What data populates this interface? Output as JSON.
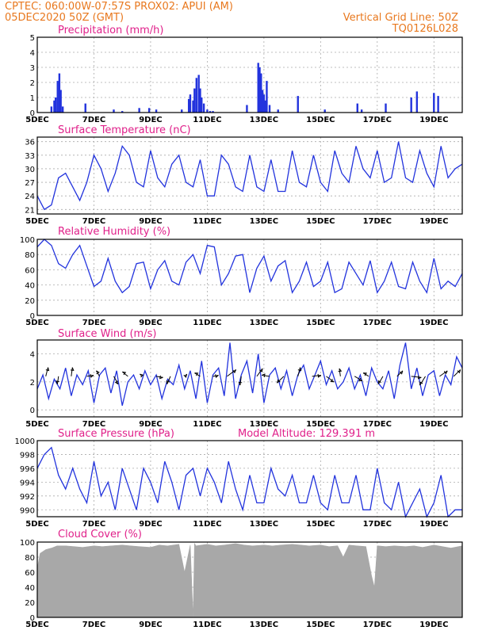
{
  "header": {
    "line1_left": "CPTEC:   060:00W-07:57S   PROX02: APUI (AM)",
    "line2_left": "05DEC2020 50Z (GMT)",
    "line1_right": "Vertical Grid Line: 50Z",
    "line2_right": "TQ0126L028"
  },
  "colors": {
    "header": "#e8781e",
    "title": "#e0208a",
    "series": "#2233dd",
    "cloud": "#a8a8a8"
  },
  "x_ticks": [
    "5DEC",
    "7DEC",
    "9DEC",
    "11DEC",
    "13DEC",
    "15DEC",
    "17DEC",
    "19DEC"
  ],
  "chart_data": [
    {
      "id": "precip",
      "type": "bar",
      "title": "Precipitation (mm/h)",
      "ylim": [
        0,
        5
      ],
      "yticks": [
        "0",
        "1",
        "2",
        "3",
        "4",
        "5"
      ],
      "xlim_days": [
        5,
        20
      ],
      "x": [
        5.5,
        5.6,
        5.65,
        5.72,
        5.78,
        5.83,
        5.9,
        6.7,
        7.7,
        8.0,
        8.6,
        8.95,
        9.2,
        10.1,
        10.35,
        10.4,
        10.5,
        10.55,
        10.62,
        10.7,
        10.75,
        10.8,
        10.88,
        11.0,
        11.1,
        11.2,
        12.4,
        12.8,
        12.85,
        12.9,
        12.95,
        13.0,
        13.05,
        13.1,
        13.2,
        13.5,
        14.2,
        15.15,
        16.3,
        16.45,
        17.3,
        18.2,
        18.4,
        19.0,
        19.15
      ],
      "values": [
        0.4,
        0.8,
        1.0,
        2.1,
        2.6,
        1.5,
        0.4,
        0.6,
        0.2,
        0.1,
        0.3,
        0.3,
        0.2,
        0.2,
        0.9,
        1.2,
        0.8,
        1.6,
        2.3,
        2.5,
        1.6,
        1.0,
        0.6,
        0.2,
        0.1,
        0.1,
        0.5,
        3.3,
        3.0,
        2.6,
        1.5,
        1.2,
        0.8,
        2.1,
        0.5,
        0.2,
        1.1,
        0.2,
        0.6,
        0.2,
        0.6,
        1.0,
        1.4,
        1.3,
        1.1
      ],
      "grid": true
    },
    {
      "id": "temp",
      "type": "line",
      "title": "Surface Temperature (nC)",
      "ylim": [
        20,
        37
      ],
      "yticks": [
        "21",
        "24",
        "27",
        "30",
        "33",
        "36"
      ],
      "xlim_days": [
        5,
        20
      ],
      "x": [
        5.0,
        5.25,
        5.5,
        5.75,
        6.0,
        6.25,
        6.5,
        6.75,
        7.0,
        7.25,
        7.5,
        7.75,
        8.0,
        8.25,
        8.5,
        8.75,
        9.0,
        9.25,
        9.5,
        9.75,
        10.0,
        10.25,
        10.5,
        10.75,
        11.0,
        11.25,
        11.5,
        11.75,
        12.0,
        12.25,
        12.5,
        12.75,
        13.0,
        13.25,
        13.5,
        13.75,
        14.0,
        14.25,
        14.5,
        14.75,
        15.0,
        15.25,
        15.5,
        15.75,
        16.0,
        16.25,
        16.5,
        16.75,
        17.0,
        17.25,
        17.5,
        17.75,
        18.0,
        18.25,
        18.5,
        18.75,
        19.0,
        19.25,
        19.5,
        19.75,
        20.0
      ],
      "values": [
        24,
        21,
        22,
        28,
        29,
        26,
        23,
        27,
        33,
        30,
        25,
        29,
        35,
        33,
        27,
        26,
        34,
        28,
        26,
        31,
        33,
        27,
        26,
        32,
        24,
        24,
        33,
        31,
        26,
        25,
        33,
        26,
        25,
        32,
        25,
        25,
        34,
        27,
        26,
        33,
        27,
        25,
        34,
        29,
        27,
        35,
        30,
        28,
        34,
        27,
        28,
        36,
        28,
        27,
        34,
        29,
        26,
        35,
        28,
        30,
        31
      ],
      "grid": true
    },
    {
      "id": "rh",
      "type": "line",
      "title": "Relative Humidity (%)",
      "ylim": [
        0,
        100
      ],
      "yticks": [
        "0",
        "20",
        "40",
        "60",
        "80",
        "100"
      ],
      "xlim_days": [
        5,
        20
      ],
      "x": [
        5.0,
        5.25,
        5.5,
        5.75,
        6.0,
        6.25,
        6.5,
        6.75,
        7.0,
        7.25,
        7.5,
        7.75,
        8.0,
        8.25,
        8.5,
        8.75,
        9.0,
        9.25,
        9.5,
        9.75,
        10.0,
        10.25,
        10.5,
        10.75,
        11.0,
        11.25,
        11.5,
        11.75,
        12.0,
        12.25,
        12.5,
        12.75,
        13.0,
        13.25,
        13.5,
        13.75,
        14.0,
        14.25,
        14.5,
        14.75,
        15.0,
        15.25,
        15.5,
        15.75,
        16.0,
        16.25,
        16.5,
        16.75,
        17.0,
        17.25,
        17.5,
        17.75,
        18.0,
        18.25,
        18.5,
        18.75,
        19.0,
        19.25,
        19.5,
        19.75,
        20.0
      ],
      "values": [
        90,
        100,
        92,
        68,
        62,
        80,
        92,
        65,
        38,
        45,
        75,
        45,
        30,
        38,
        68,
        70,
        35,
        60,
        72,
        45,
        40,
        70,
        80,
        55,
        92,
        90,
        40,
        55,
        78,
        80,
        30,
        62,
        78,
        45,
        65,
        72,
        30,
        45,
        70,
        38,
        45,
        70,
        30,
        35,
        70,
        55,
        40,
        72,
        30,
        45,
        70,
        38,
        35,
        70,
        45,
        30,
        75,
        35,
        45,
        38,
        55
      ],
      "grid": true
    },
    {
      "id": "wind",
      "type": "line",
      "title": "Surface Wind (m/s)",
      "ylim": [
        -0.5,
        5.0
      ],
      "yticks": [
        "0",
        "2",
        "4"
      ],
      "xlim_days": [
        5,
        20
      ],
      "x": [
        5.0,
        5.2,
        5.4,
        5.6,
        5.8,
        6.0,
        6.2,
        6.4,
        6.6,
        6.8,
        7.0,
        7.2,
        7.4,
        7.6,
        7.8,
        8.0,
        8.2,
        8.4,
        8.6,
        8.8,
        9.0,
        9.2,
        9.4,
        9.6,
        9.8,
        10.0,
        10.2,
        10.4,
        10.6,
        10.8,
        11.0,
        11.2,
        11.4,
        11.6,
        11.8,
        12.0,
        12.2,
        12.4,
        12.6,
        12.8,
        13.0,
        13.2,
        13.4,
        13.6,
        13.8,
        14.0,
        14.2,
        14.4,
        14.6,
        14.8,
        15.0,
        15.2,
        15.4,
        15.6,
        15.8,
        16.0,
        16.2,
        16.4,
        16.6,
        16.8,
        17.0,
        17.2,
        17.4,
        17.6,
        17.8,
        18.0,
        18.2,
        18.4,
        18.6,
        18.8,
        19.0,
        19.2,
        19.4,
        19.6,
        19.8,
        20.0
      ],
      "values": [
        1.5,
        2.5,
        0.8,
        2.2,
        1.5,
        3.0,
        1.0,
        2.5,
        1.8,
        2.8,
        0.5,
        2.5,
        3.0,
        1.2,
        2.8,
        0.3,
        2.0,
        2.5,
        1.5,
        2.8,
        1.8,
        2.5,
        0.8,
        2.2,
        1.8,
        3.2,
        1.5,
        2.8,
        0.8,
        3.5,
        0.5,
        2.5,
        3.0,
        1.0,
        4.8,
        0.8,
        2.5,
        3.5,
        1.2,
        4.0,
        0.5,
        2.5,
        3.0,
        1.5,
        2.8,
        1.0,
        2.5,
        3.2,
        1.5,
        2.5,
        3.5,
        1.8,
        2.8,
        1.5,
        2.0,
        3.0,
        1.5,
        2.5,
        1.0,
        3.0,
        2.0,
        1.5,
        2.8,
        0.8,
        3.2,
        4.8,
        1.5,
        3.0,
        1.0,
        2.5,
        2.8,
        1.0,
        2.5,
        1.8,
        3.8,
        3.0
      ],
      "arrows_x": [
        5.3,
        5.75,
        6.2,
        6.75,
        7.2,
        7.7,
        8.2,
        8.7,
        9.2,
        9.7,
        10.2,
        10.75,
        11.2,
        11.7,
        12.2,
        12.75,
        13.2,
        13.7,
        14.2,
        14.7,
        15.2,
        15.7,
        16.2,
        16.7,
        17.2,
        17.7,
        18.2,
        18.7,
        19.2,
        19.7
      ],
      "arrows_u": [
        0.2,
        -0.1,
        0.1,
        0.6,
        -0.3,
        0.4,
        -0.5,
        -0.2,
        0.6,
        -0.3,
        0.2,
        -0.5,
        0.5,
        0.8,
        -0.1,
        0.5,
        -0.7,
        -0.6,
        0.2,
        0.8,
        0.7,
        -0.1,
        0.7,
        -0.5,
        -0.4,
        0.5,
        0.9,
        -0.5,
        0.7,
        0.6
      ],
      "arrows_v": [
        0.8,
        -0.7,
        0.8,
        0.1,
        0.5,
        -0.7,
        0.4,
        0.2,
        -0.1,
        -0.7,
        0.2,
        0.3,
        0.1,
        0.6,
        -0.8,
        0.7,
        0.1,
        -0.6,
        0.8,
        0.1,
        -0.5,
        0.7,
        -0.4,
        0.3,
        -0.7,
        0.5,
        -0.1,
        -0.8,
        0.5,
        0.6
      ],
      "grid": true
    },
    {
      "id": "pres",
      "type": "line",
      "title": "Surface Pressure (hPa)",
      "annotation": "Model Altitude: 129.391 m",
      "ylim": [
        989,
        1000
      ],
      "yticks": [
        "990",
        "992",
        "994",
        "996",
        "998",
        "1000"
      ],
      "xlim_days": [
        5,
        20
      ],
      "x": [
        5.0,
        5.25,
        5.5,
        5.75,
        6.0,
        6.25,
        6.5,
        6.75,
        7.0,
        7.25,
        7.5,
        7.75,
        8.0,
        8.25,
        8.5,
        8.75,
        9.0,
        9.25,
        9.5,
        9.75,
        10.0,
        10.25,
        10.5,
        10.75,
        11.0,
        11.25,
        11.5,
        11.75,
        12.0,
        12.25,
        12.5,
        12.75,
        13.0,
        13.25,
        13.5,
        13.75,
        14.0,
        14.25,
        14.5,
        14.75,
        15.0,
        15.25,
        15.5,
        15.75,
        16.0,
        16.25,
        16.5,
        16.75,
        17.0,
        17.25,
        17.5,
        17.75,
        18.0,
        18.25,
        18.5,
        18.75,
        19.0,
        19.25,
        19.5,
        19.75,
        20.0
      ],
      "values": [
        996,
        998,
        999,
        995,
        993,
        996,
        993,
        991,
        997,
        992,
        994,
        990,
        996,
        993,
        990,
        996,
        994,
        991,
        997,
        994,
        990,
        995,
        996,
        992,
        996,
        994,
        991,
        997,
        993,
        990,
        995,
        991,
        991,
        996,
        993,
        992,
        995,
        991,
        991,
        995,
        991,
        990,
        995,
        991,
        991,
        995,
        990,
        990,
        996,
        991,
        990,
        994,
        989,
        991,
        993,
        989,
        991,
        995,
        989,
        990,
        990
      ],
      "grid": true
    },
    {
      "id": "cloud",
      "type": "area",
      "title": "Cloud Cover (%)",
      "ylim": [
        0,
        100
      ],
      "yticks": [
        "0",
        "20",
        "40",
        "60",
        "80",
        "100"
      ],
      "xlim_days": [
        5,
        20
      ],
      "x": [
        5.0,
        5.1,
        5.3,
        5.5,
        5.7,
        6.0,
        6.3,
        6.6,
        7.0,
        7.3,
        7.6,
        8.0,
        8.3,
        8.6,
        9.0,
        9.3,
        9.6,
        10.0,
        10.2,
        10.4,
        10.5,
        10.55,
        10.6,
        10.8,
        11.0,
        11.3,
        11.6,
        12.0,
        12.3,
        12.6,
        13.0,
        13.3,
        13.6,
        14.0,
        14.3,
        14.6,
        15.0,
        15.3,
        15.6,
        15.8,
        16.0,
        16.3,
        16.6,
        16.8,
        16.9,
        17.0,
        17.3,
        17.6,
        18.0,
        18.3,
        18.6,
        19.0,
        19.3,
        19.6,
        20.0
      ],
      "values": [
        65,
        85,
        90,
        92,
        95,
        95,
        94,
        93,
        95,
        94,
        95,
        96,
        95,
        94,
        93,
        96,
        95,
        97,
        60,
        96,
        0,
        98,
        95,
        96,
        97,
        95,
        96,
        98,
        96,
        95,
        96,
        95,
        96,
        97,
        96,
        95,
        96,
        94,
        95,
        80,
        96,
        95,
        94,
        55,
        40,
        95,
        94,
        95,
        94,
        95,
        93,
        96,
        94,
        92,
        95
      ],
      "grid": true
    }
  ]
}
